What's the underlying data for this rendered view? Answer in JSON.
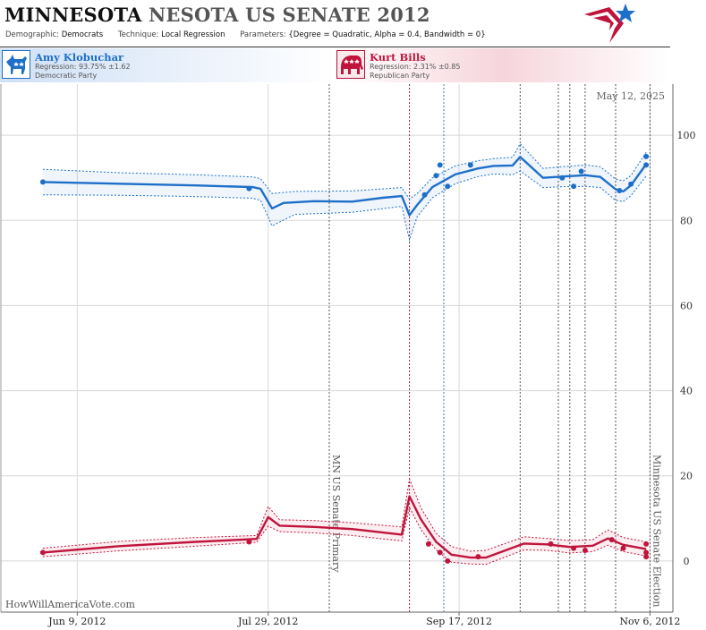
{
  "header": {
    "title_state": "MINNESOTA",
    "title_rest": "NESOTA US SENATE 2012",
    "demographic_label": "Demographic:",
    "demographic_value": "Democrats",
    "technique_label": "Technique:",
    "technique_value": "Local Regression",
    "parameters_label": "Parameters:",
    "parameters_value": "{Degree = Quadratic, Alpha = 0.4, Bandwidth = 0}"
  },
  "candidates": [
    {
      "name": "Amy Klobuchar",
      "regression": "Regression: 93.75% ±1.62",
      "party": "Democratic Party",
      "color": "#1e6fc9",
      "icon": "donkey-icon"
    },
    {
      "name": "Kurt Bills",
      "regression": "Regression: 2.31% ±0.85",
      "party": "Republican Party",
      "color": "#c0143c",
      "icon": "elephant-icon"
    }
  ],
  "watermark": "HowWillAmericaVote.com",
  "date_stamp": "May 12, 2025",
  "colors": {
    "dem": "#1e6fc9",
    "rep": "#c0143c",
    "grid": "#d8d8d8",
    "event_dark": "#555555",
    "event_red": "#9b1a3c",
    "event_blue": "#3a7fb0"
  },
  "chart_data": {
    "type": "line",
    "x_axis": {
      "type": "date",
      "ticks": [
        "2012-06-09",
        "2012-07-29",
        "2012-09-17",
        "2012-11-06"
      ],
      "tick_labels": [
        "Jun 9, 2012",
        "Jul 29, 2012",
        "Sep 17, 2012",
        "Nov 6, 2012"
      ],
      "range": [
        "2012-05-20",
        "2012-11-12"
      ]
    },
    "y_axis": {
      "position": "right",
      "ticks": [
        0,
        20,
        40,
        60,
        80,
        100
      ],
      "range": [
        -12,
        112
      ]
    },
    "grid": true,
    "events": [
      {
        "date": "2012-08-14",
        "label": "MN US Senate Primary",
        "style": "dark"
      },
      {
        "date": "2012-09-04",
        "label": "",
        "style": "red"
      },
      {
        "date": "2012-09-13",
        "label": "",
        "style": "blue"
      },
      {
        "date": "2012-10-03",
        "label": "",
        "style": "dark"
      },
      {
        "date": "2012-10-13",
        "label": "",
        "style": "dark"
      },
      {
        "date": "2012-10-16",
        "label": "",
        "style": "dark"
      },
      {
        "date": "2012-10-20",
        "label": "",
        "style": "dark"
      },
      {
        "date": "2012-10-28",
        "label": "",
        "style": "dark"
      },
      {
        "date": "2012-11-06",
        "label": "Minnesota US Senate Election",
        "style": "dark"
      }
    ],
    "series": [
      {
        "name": "Amy Klobuchar",
        "color": "#1e6fc9",
        "trend": [
          [
            "2012-05-31",
            89
          ],
          [
            "2012-06-20",
            88.6
          ],
          [
            "2012-07-10",
            88.2
          ],
          [
            "2012-07-25",
            87.8
          ],
          [
            "2012-07-27",
            87.4
          ],
          [
            "2012-07-30",
            82.8
          ],
          [
            "2012-08-02",
            84.1
          ],
          [
            "2012-08-10",
            84.5
          ],
          [
            "2012-08-20",
            84.4
          ],
          [
            "2012-08-28",
            85.3
          ],
          [
            "2012-09-02",
            85.7
          ],
          [
            "2012-09-04",
            81.2
          ],
          [
            "2012-09-06",
            83.6
          ],
          [
            "2012-09-10",
            87.8
          ],
          [
            "2012-09-16",
            90.8
          ],
          [
            "2012-09-22",
            92.2
          ],
          [
            "2012-09-26",
            92.8
          ],
          [
            "2012-10-01",
            92.9
          ],
          [
            "2012-10-03",
            94.9
          ],
          [
            "2012-10-09",
            90.0
          ],
          [
            "2012-10-14",
            90.3
          ],
          [
            "2012-10-20",
            90.6
          ],
          [
            "2012-10-24",
            90.2
          ],
          [
            "2012-10-28",
            87.3
          ],
          [
            "2012-10-30",
            86.8
          ],
          [
            "2012-11-01",
            88.2
          ],
          [
            "2012-11-05",
            93.2
          ]
        ],
        "upper": [
          [
            "2012-05-31",
            92
          ],
          [
            "2012-06-20",
            91.2
          ],
          [
            "2012-07-10",
            90.7
          ],
          [
            "2012-07-25",
            90.2
          ],
          [
            "2012-07-27",
            89.8
          ],
          [
            "2012-07-30",
            86.3
          ],
          [
            "2012-08-05",
            86.8
          ],
          [
            "2012-08-20",
            86.9
          ],
          [
            "2012-09-02",
            87.7
          ],
          [
            "2012-09-04",
            85.0
          ],
          [
            "2012-09-06",
            86.3
          ],
          [
            "2012-09-10",
            90.0
          ],
          [
            "2012-09-16",
            92.8
          ],
          [
            "2012-09-22",
            94.0
          ],
          [
            "2012-09-26",
            94.5
          ],
          [
            "2012-10-01",
            94.8
          ],
          [
            "2012-10-03",
            98.0
          ],
          [
            "2012-10-09",
            92.2
          ],
          [
            "2012-10-14",
            92.6
          ],
          [
            "2012-10-20",
            93.0
          ],
          [
            "2012-10-24",
            92.6
          ],
          [
            "2012-10-28",
            89.7
          ],
          [
            "2012-10-30",
            89.3
          ],
          [
            "2012-11-01",
            90.5
          ],
          [
            "2012-11-05",
            96.0
          ]
        ],
        "lower": [
          [
            "2012-05-31",
            86
          ],
          [
            "2012-06-20",
            85.9
          ],
          [
            "2012-07-10",
            85.6
          ],
          [
            "2012-07-25",
            85.2
          ],
          [
            "2012-07-27",
            84.7
          ],
          [
            "2012-07-30",
            78.7
          ],
          [
            "2012-08-05",
            81.4
          ],
          [
            "2012-08-20",
            81.9
          ],
          [
            "2012-09-02",
            83.3
          ],
          [
            "2012-09-04",
            75.4
          ],
          [
            "2012-09-06",
            80.8
          ],
          [
            "2012-09-10",
            85.3
          ],
          [
            "2012-09-16",
            88.6
          ],
          [
            "2012-09-22",
            90.3
          ],
          [
            "2012-09-26",
            90.9
          ],
          [
            "2012-10-01",
            90.7
          ],
          [
            "2012-10-03",
            91.6
          ],
          [
            "2012-10-09",
            87.7
          ],
          [
            "2012-10-14",
            87.9
          ],
          [
            "2012-10-20",
            88.0
          ],
          [
            "2012-10-24",
            87.7
          ],
          [
            "2012-10-28",
            84.7
          ],
          [
            "2012-10-30",
            84.4
          ],
          [
            "2012-11-01",
            85.8
          ],
          [
            "2012-11-05",
            90.4
          ]
        ],
        "points": [
          [
            "2012-05-31",
            89
          ],
          [
            "2012-07-24",
            87.5
          ],
          [
            "2012-09-08",
            86
          ],
          [
            "2012-09-11",
            90.5
          ],
          [
            "2012-09-12",
            93
          ],
          [
            "2012-09-14",
            88
          ],
          [
            "2012-09-20",
            93
          ],
          [
            "2012-10-14",
            90
          ],
          [
            "2012-10-17",
            88
          ],
          [
            "2012-10-19",
            91.5
          ],
          [
            "2012-10-29",
            87
          ],
          [
            "2012-11-01",
            88.5
          ],
          [
            "2012-11-05",
            93
          ],
          [
            "2012-11-05",
            95
          ]
        ]
      },
      {
        "name": "Kurt Bills",
        "color": "#c0143c",
        "trend": [
          [
            "2012-05-31",
            2
          ],
          [
            "2012-06-20",
            3.5
          ],
          [
            "2012-07-10",
            4.5
          ],
          [
            "2012-07-22",
            5
          ],
          [
            "2012-07-26",
            5.2
          ],
          [
            "2012-07-29",
            10.3
          ],
          [
            "2012-08-01",
            8.3
          ],
          [
            "2012-08-10",
            8.0
          ],
          [
            "2012-08-20",
            7.5
          ],
          [
            "2012-09-02",
            6.2
          ],
          [
            "2012-09-04",
            15.2
          ],
          [
            "2012-09-07",
            9.8
          ],
          [
            "2012-09-11",
            4.5
          ],
          [
            "2012-09-15",
            1.5
          ],
          [
            "2012-09-20",
            0.8
          ],
          [
            "2012-09-24",
            0.8
          ],
          [
            "2012-10-04",
            4.1
          ],
          [
            "2012-10-10",
            3.9
          ],
          [
            "2012-10-16",
            3.3
          ],
          [
            "2012-10-22",
            3.6
          ],
          [
            "2012-10-26",
            5.3
          ],
          [
            "2012-10-30",
            3.8
          ],
          [
            "2012-11-05",
            2.8
          ]
        ],
        "upper": [
          [
            "2012-05-31",
            3
          ],
          [
            "2012-06-20",
            4.6
          ],
          [
            "2012-07-10",
            5.5
          ],
          [
            "2012-07-26",
            6.0
          ],
          [
            "2012-07-29",
            12.8
          ],
          [
            "2012-08-01",
            9.7
          ],
          [
            "2012-08-10",
            9.5
          ],
          [
            "2012-08-20",
            9.0
          ],
          [
            "2012-09-02",
            8.0
          ],
          [
            "2012-09-04",
            19.2
          ],
          [
            "2012-09-07",
            12.5
          ],
          [
            "2012-09-11",
            6.5
          ],
          [
            "2012-09-15",
            3.4
          ],
          [
            "2012-09-20",
            2.3
          ],
          [
            "2012-09-24",
            2.5
          ],
          [
            "2012-10-04",
            5.7
          ],
          [
            "2012-10-10",
            5.3
          ],
          [
            "2012-10-16",
            4.8
          ],
          [
            "2012-10-22",
            5.0
          ],
          [
            "2012-10-26",
            7.3
          ],
          [
            "2012-10-30",
            5.5
          ],
          [
            "2012-11-05",
            4.5
          ]
        ],
        "lower": [
          [
            "2012-05-31",
            1
          ],
          [
            "2012-06-20",
            2.4
          ],
          [
            "2012-07-10",
            3.5
          ],
          [
            "2012-07-26",
            4.4
          ],
          [
            "2012-07-29",
            8.2
          ],
          [
            "2012-08-01",
            6.9
          ],
          [
            "2012-08-10",
            6.6
          ],
          [
            "2012-08-20",
            6.0
          ],
          [
            "2012-09-02",
            4.7
          ],
          [
            "2012-09-04",
            12.6
          ],
          [
            "2012-09-07",
            7.4
          ],
          [
            "2012-09-11",
            2.6
          ],
          [
            "2012-09-15",
            -0.3
          ],
          [
            "2012-09-20",
            -0.7
          ],
          [
            "2012-09-24",
            -0.8
          ],
          [
            "2012-10-04",
            2.6
          ],
          [
            "2012-10-10",
            2.5
          ],
          [
            "2012-10-16",
            1.9
          ],
          [
            "2012-10-22",
            2.2
          ],
          [
            "2012-10-26",
            3.7
          ],
          [
            "2012-10-30",
            2.2
          ],
          [
            "2012-11-05",
            1.2
          ]
        ],
        "points": [
          [
            "2012-05-31",
            2
          ],
          [
            "2012-07-24",
            4.5
          ],
          [
            "2012-09-09",
            4
          ],
          [
            "2012-09-12",
            2
          ],
          [
            "2012-09-14",
            0
          ],
          [
            "2012-09-22",
            1
          ],
          [
            "2012-10-11",
            4
          ],
          [
            "2012-10-17",
            3
          ],
          [
            "2012-10-20",
            2.5
          ],
          [
            "2012-10-27",
            5
          ],
          [
            "2012-10-30",
            3
          ],
          [
            "2012-11-05",
            4
          ],
          [
            "2012-11-05",
            2
          ],
          [
            "2012-11-05",
            1
          ]
        ]
      }
    ]
  }
}
